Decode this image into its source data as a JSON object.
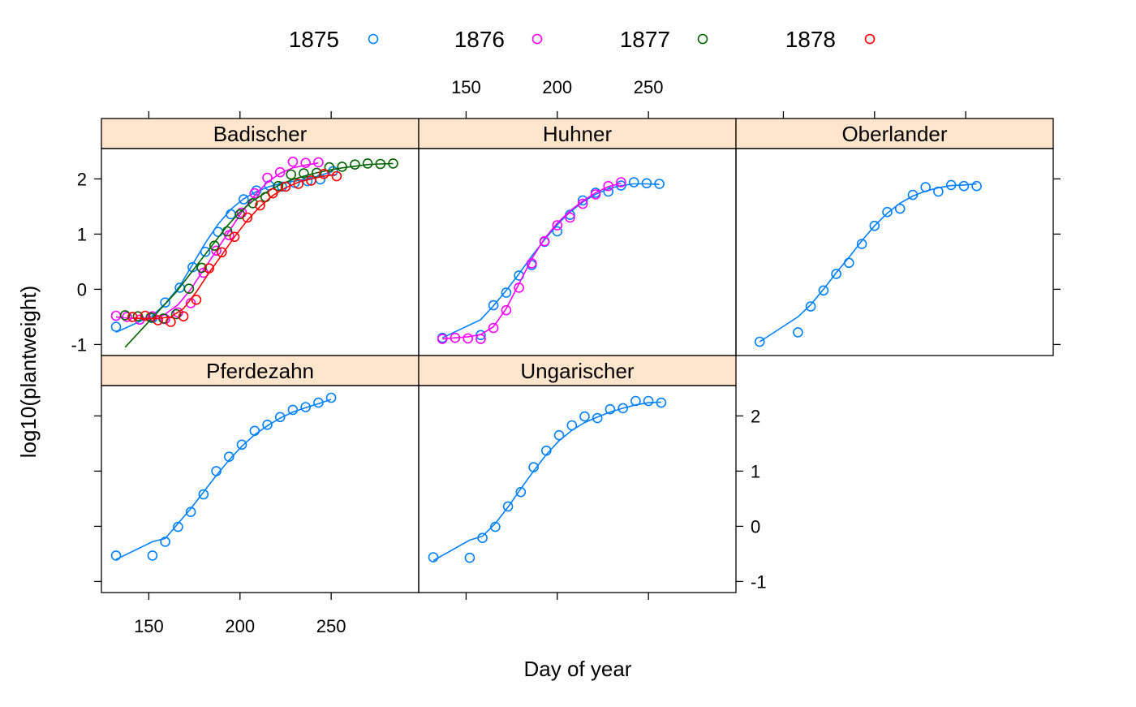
{
  "chart_data": {
    "type": "line",
    "layout": "trellis",
    "xlabel": "Day of year",
    "ylabel": "log10(plantweight)",
    "xticks": [
      150,
      200,
      250
    ],
    "yticks": [
      -1,
      0,
      1,
      2
    ],
    "xlim": [
      124,
      298
    ],
    "ylim": [
      -1.2,
      2.55
    ],
    "legend": {
      "placement": "top",
      "items": [
        {
          "label": "1875",
          "color": "#0080ff"
        },
        {
          "label": "1876",
          "color": "#ff00ff"
        },
        {
          "label": "1877",
          "color": "#006400"
        },
        {
          "label": "1878",
          "color": "#ff0000"
        }
      ]
    },
    "panels": [
      {
        "name": "Badischer",
        "series": [
          {
            "year": "1875",
            "color": "#0080ff",
            "x": [
              132,
              152,
              159,
              167,
              174,
              181,
              188,
              195,
              202,
              209,
              216,
              223,
              230,
              237,
              244,
              251
            ],
            "y": [
              -0.68,
              -0.52,
              -0.24,
              0.03,
              0.4,
              0.68,
              1.04,
              1.36,
              1.63,
              1.79,
              1.88,
              1.86,
              1.93,
              1.96,
              1.99,
              2.14
            ],
            "fit": [
              -0.78,
              -0.48,
              -0.26,
              0.06,
              0.45,
              0.84,
              1.18,
              1.45,
              1.64,
              1.77,
              1.86,
              1.92,
              1.96,
              2.0,
              2.06,
              2.14
            ]
          },
          {
            "year": "1876",
            "color": "#ff00ff",
            "x": [
              132,
              138,
              145,
              152,
              159,
              166,
              173,
              180,
              187,
              194,
              201,
              208,
              215,
              222,
              229,
              236,
              243
            ],
            "y": [
              -0.48,
              -0.5,
              -0.55,
              -0.49,
              -0.54,
              -0.42,
              -0.25,
              0.3,
              0.7,
              0.98,
              1.39,
              1.74,
              2.02,
              2.12,
              2.31,
              2.29,
              2.3
            ],
            "fit": [
              -0.5,
              -0.52,
              -0.53,
              -0.52,
              -0.45,
              -0.28,
              0.0,
              0.35,
              0.7,
              1.05,
              1.4,
              1.7,
              1.94,
              2.1,
              2.2,
              2.25,
              2.29
            ]
          },
          {
            "year": "1877",
            "color": "#006400",
            "x": [
              137,
              144,
              151,
              158,
              165,
              172,
              179,
              186,
              193,
              200,
              207,
              214,
              221,
              228,
              235,
              242,
              249,
              256,
              263,
              270,
              277,
              284
            ],
            "y": [
              -0.47,
              -0.49,
              -0.51,
              -0.53,
              -0.45,
              0.01,
              0.39,
              0.79,
              1.05,
              1.36,
              1.56,
              1.67,
              1.87,
              2.08,
              2.1,
              2.11,
              2.21,
              2.22,
              2.26,
              2.28,
              2.27,
              2.28
            ],
            "fit": [
              -1.05,
              -0.8,
              -0.55,
              -0.3,
              -0.05,
              0.25,
              0.55,
              0.85,
              1.15,
              1.4,
              1.6,
              1.75,
              1.88,
              1.98,
              2.05,
              2.11,
              2.16,
              2.2,
              2.23,
              2.26,
              2.27,
              2.28
            ]
          },
          {
            "year": "1878",
            "color": "#ff0000",
            "x": [
              141,
              148,
              155,
              162,
              169,
              176,
              183,
              190,
              197,
              204,
              211,
              218,
              225,
              232,
              239,
              246,
              253
            ],
            "y": [
              -0.5,
              -0.48,
              -0.56,
              -0.59,
              -0.49,
              -0.19,
              0.38,
              0.67,
              0.95,
              1.3,
              1.52,
              1.74,
              1.86,
              1.91,
              1.97,
              2.09,
              2.05
            ],
            "fit": [
              -0.52,
              -0.53,
              -0.53,
              -0.5,
              -0.35,
              -0.05,
              0.3,
              0.62,
              0.95,
              1.25,
              1.5,
              1.7,
              1.84,
              1.94,
              2.0,
              2.05,
              2.08
            ]
          }
        ]
      },
      {
        "name": "Huhner",
        "series": [
          {
            "year": "1875",
            "color": "#0080ff",
            "x": [
              137,
              158,
              165,
              172,
              179,
              186,
              193,
              200,
              207,
              214,
              221,
              228,
              235,
              242,
              249,
              256
            ],
            "y": [
              -0.88,
              -0.83,
              -0.29,
              -0.06,
              0.25,
              0.44,
              0.86,
              1.05,
              1.35,
              1.61,
              1.75,
              1.77,
              1.88,
              1.94,
              1.92,
              1.91
            ],
            "fit": [
              -0.88,
              -0.55,
              -0.3,
              -0.02,
              0.28,
              0.6,
              0.9,
              1.17,
              1.4,
              1.58,
              1.72,
              1.82,
              1.88,
              1.91,
              1.91,
              1.9
            ]
          },
          {
            "year": "1876",
            "color": "#ff00ff",
            "x": [
              137,
              144,
              151,
              158,
              165,
              172,
              179,
              186,
              193,
              200,
              207,
              214,
              221,
              228,
              235
            ],
            "y": [
              -0.9,
              -0.88,
              -0.89,
              -0.9,
              -0.7,
              -0.38,
              0.03,
              0.47,
              0.87,
              1.16,
              1.3,
              1.55,
              1.72,
              1.87,
              1.94
            ],
            "fit": [
              -0.9,
              -0.88,
              -0.86,
              -0.82,
              -0.68,
              -0.35,
              0.1,
              0.55,
              0.92,
              1.2,
              1.42,
              1.6,
              1.75,
              1.86,
              1.92
            ]
          }
        ]
      },
      {
        "name": "Oberlander",
        "series": [
          {
            "year": "1875",
            "color": "#0080ff",
            "x": [
              137,
              158,
              165,
              172,
              179,
              186,
              193,
              200,
              207,
              214,
              221,
              228,
              235,
              242,
              249,
              256
            ],
            "y": [
              -0.95,
              -0.78,
              -0.31,
              -0.02,
              0.28,
              0.48,
              0.82,
              1.15,
              1.4,
              1.46,
              1.71,
              1.85,
              1.77,
              1.89,
              1.87,
              1.87
            ],
            "fit": [
              -0.95,
              -0.5,
              -0.28,
              0.0,
              0.3,
              0.58,
              0.88,
              1.15,
              1.38,
              1.56,
              1.69,
              1.78,
              1.84,
              1.88,
              1.89,
              1.91
            ]
          }
        ]
      },
      {
        "name": "Pferdezahn",
        "series": [
          {
            "year": "1875",
            "color": "#0080ff",
            "x": [
              132,
              152,
              159,
              166,
              173,
              180,
              187,
              194,
              201,
              208,
              215,
              222,
              229,
              236,
              243,
              250
            ],
            "y": [
              -0.53,
              -0.53,
              -0.28,
              -0.01,
              0.26,
              0.58,
              1.0,
              1.26,
              1.48,
              1.73,
              1.84,
              1.98,
              2.11,
              2.16,
              2.24,
              2.33
            ],
            "fit": [
              -0.6,
              -0.28,
              -0.22,
              0.05,
              0.32,
              0.62,
              0.92,
              1.2,
              1.45,
              1.66,
              1.82,
              1.96,
              2.07,
              2.15,
              2.22,
              2.3
            ]
          }
        ]
      },
      {
        "name": "Ungarischer",
        "series": [
          {
            "year": "1875",
            "color": "#0080ff",
            "x": [
              132,
              152,
              159,
              166,
              173,
              180,
              187,
              194,
              201,
              208,
              215,
              222,
              229,
              236,
              243,
              250,
              257
            ],
            "y": [
              -0.56,
              -0.57,
              -0.21,
              -0.01,
              0.36,
              0.62,
              1.07,
              1.37,
              1.65,
              1.83,
              1.99,
              1.96,
              2.12,
              2.14,
              2.27,
              2.27,
              2.24
            ],
            "fit": [
              -0.62,
              -0.25,
              -0.18,
              0.05,
              0.35,
              0.68,
              1.0,
              1.3,
              1.55,
              1.74,
              1.88,
              1.98,
              2.07,
              2.14,
              2.2,
              2.24,
              2.25
            ]
          }
        ]
      }
    ]
  }
}
